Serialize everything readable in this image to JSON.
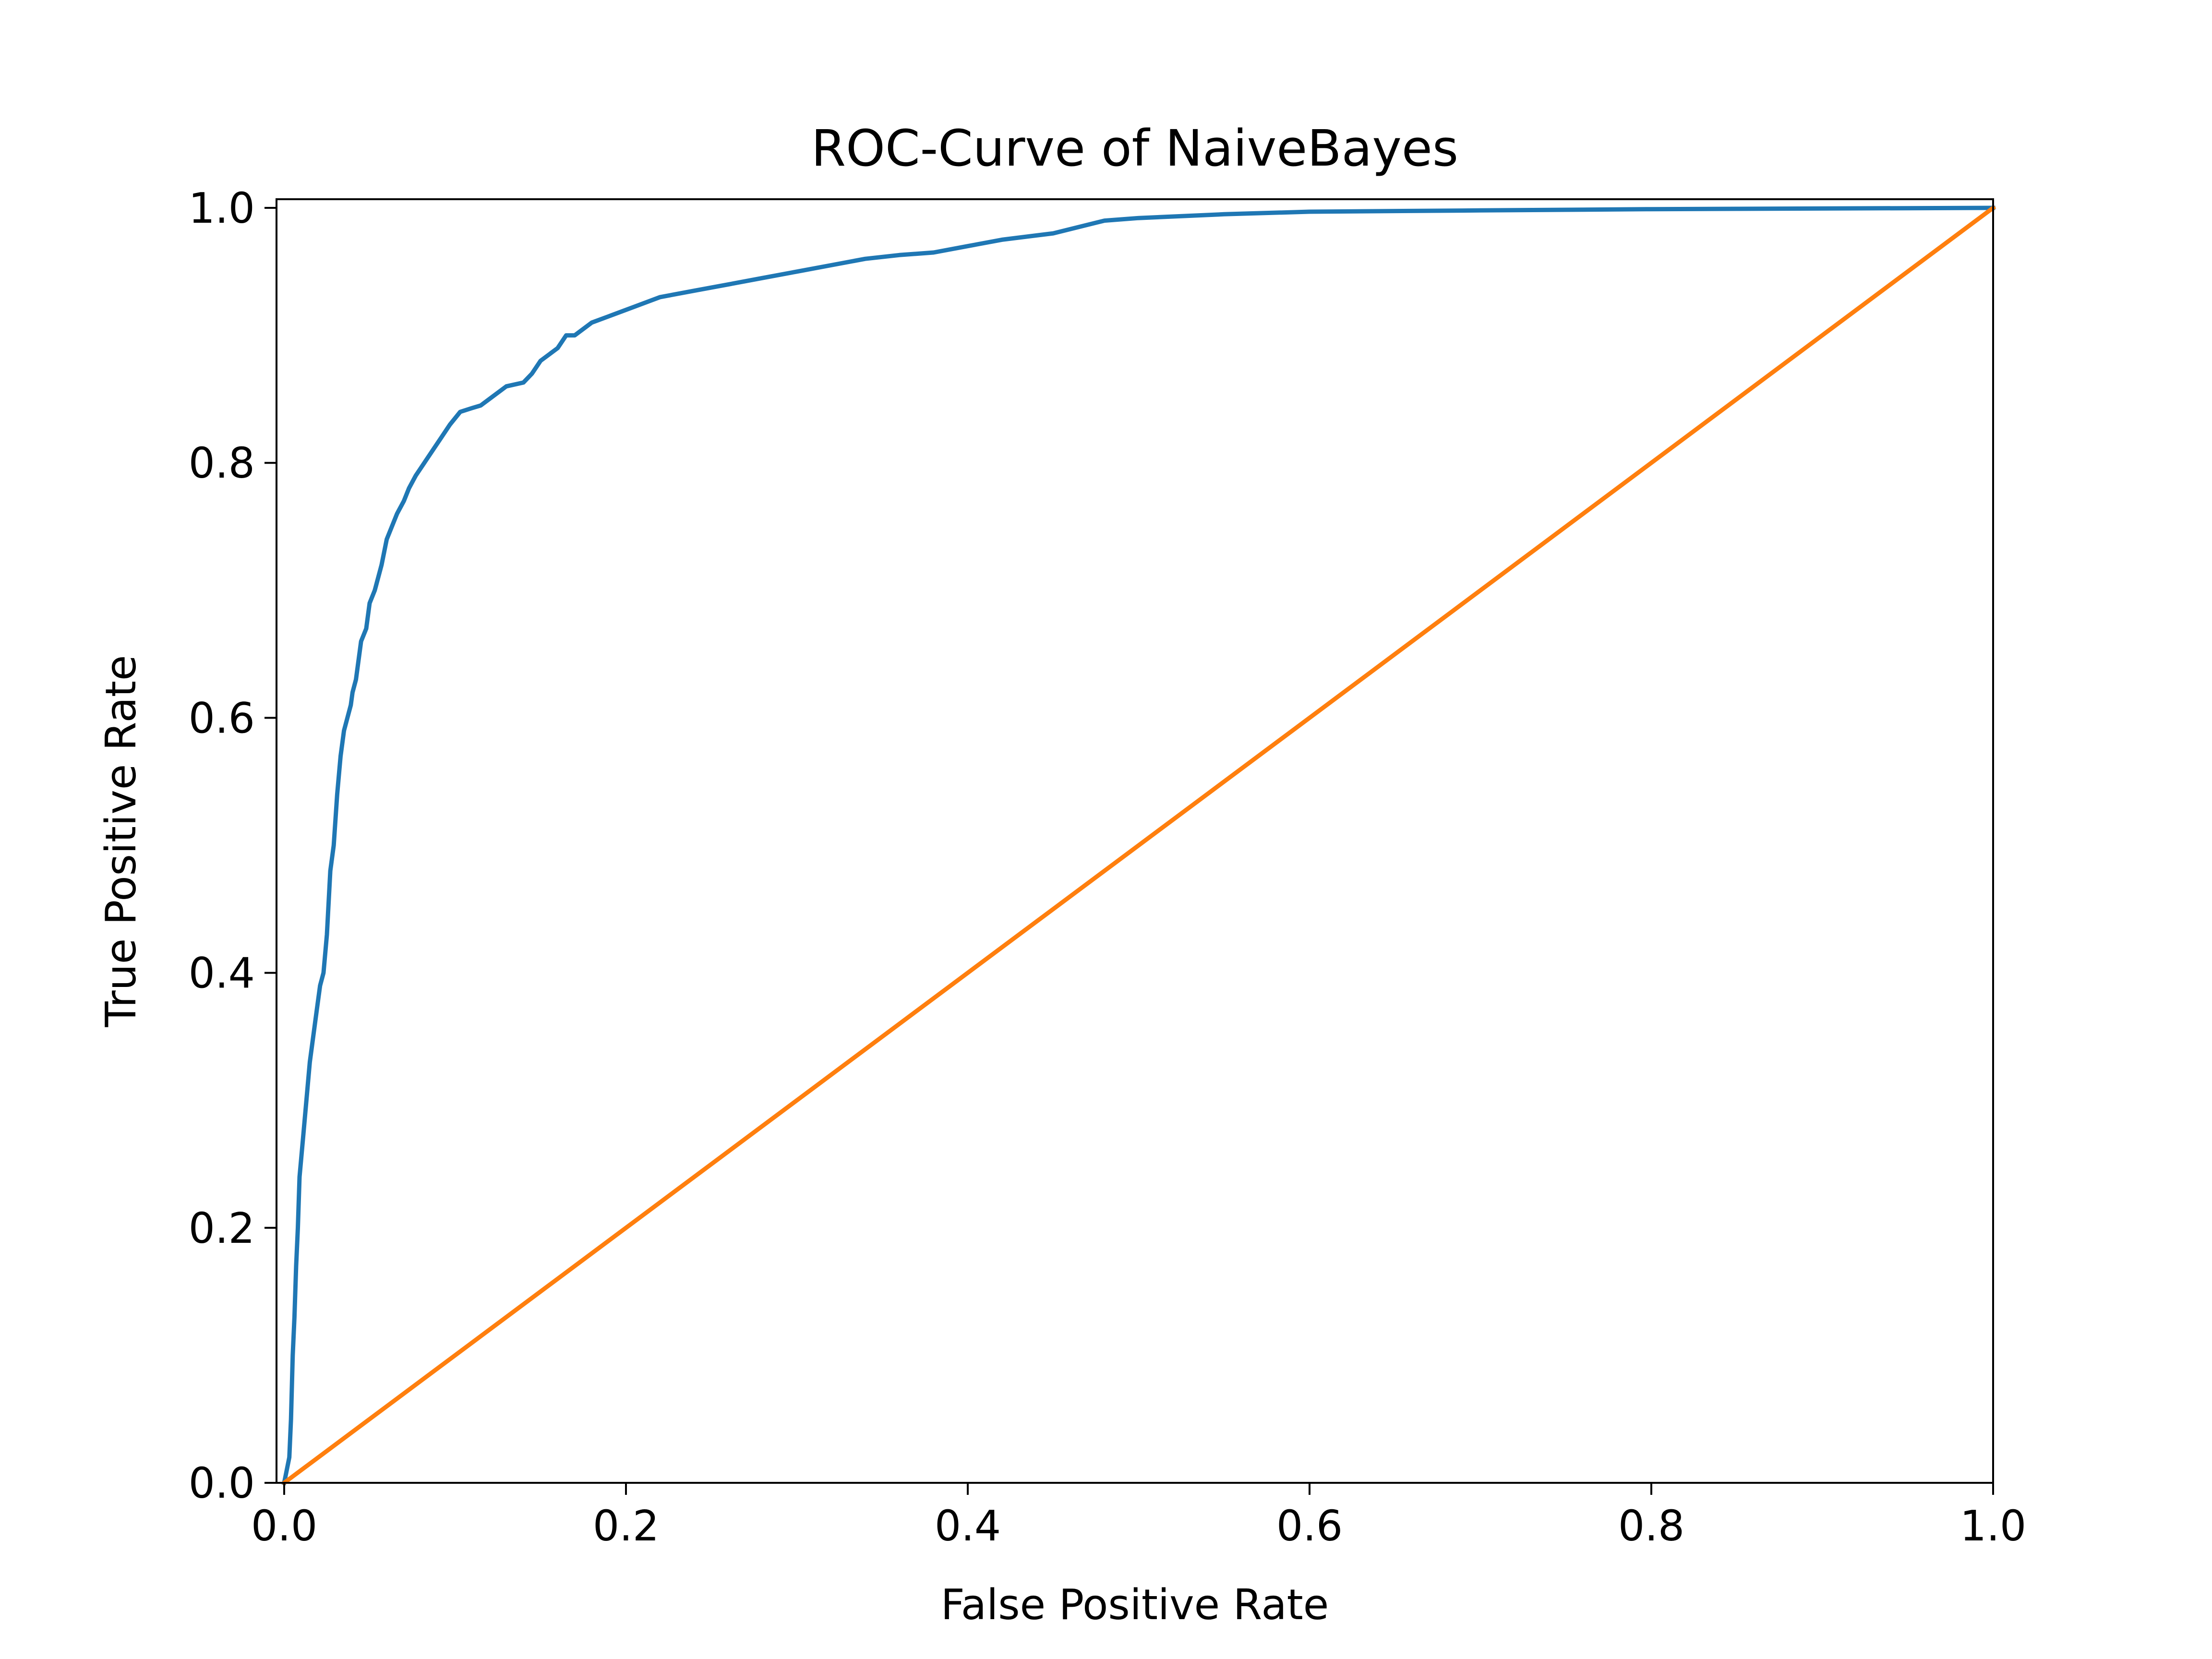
{
  "chart_data": {
    "type": "line",
    "title": "ROC-Curve of NaiveBayes",
    "xlabel": "False Positive Rate",
    "ylabel": "True Positive Rate",
    "xlim": [
      0.0,
      1.0
    ],
    "ylim": [
      0.0,
      1.0
    ],
    "x_ticks": [
      "0.0",
      "0.2",
      "0.4",
      "0.6",
      "0.8",
      "1.0"
    ],
    "y_ticks": [
      "0.0",
      "0.2",
      "0.4",
      "0.6",
      "0.8",
      "1.0"
    ],
    "grid": false,
    "legend": "none",
    "series": [
      {
        "color": "#1f77b4",
        "x": [
          0.0,
          0.003,
          0.004,
          0.005,
          0.006,
          0.007,
          0.008,
          0.009,
          0.011,
          0.013,
          0.015,
          0.017,
          0.019,
          0.021,
          0.023,
          0.025,
          0.027,
          0.029,
          0.031,
          0.033,
          0.035,
          0.037,
          0.039,
          0.04,
          0.042,
          0.045,
          0.048,
          0.05,
          0.053,
          0.057,
          0.06,
          0.063,
          0.066,
          0.07,
          0.073,
          0.077,
          0.082,
          0.087,
          0.092,
          0.097,
          0.103,
          0.11,
          0.115,
          0.12,
          0.13,
          0.14,
          0.145,
          0.15,
          0.16,
          0.165,
          0.17,
          0.18,
          0.19,
          0.2,
          0.22,
          0.24,
          0.26,
          0.28,
          0.3,
          0.32,
          0.34,
          0.36,
          0.38,
          0.4,
          0.42,
          0.45,
          0.48,
          0.5,
          0.55,
          0.6,
          0.7,
          0.8,
          1.0
        ],
        "y": [
          0.0,
          0.02,
          0.05,
          0.1,
          0.13,
          0.17,
          0.2,
          0.24,
          0.27,
          0.3,
          0.33,
          0.35,
          0.37,
          0.39,
          0.4,
          0.43,
          0.48,
          0.5,
          0.54,
          0.57,
          0.59,
          0.6,
          0.61,
          0.62,
          0.63,
          0.66,
          0.67,
          0.69,
          0.7,
          0.72,
          0.74,
          0.75,
          0.76,
          0.77,
          0.78,
          0.79,
          0.8,
          0.81,
          0.82,
          0.83,
          0.84,
          0.843,
          0.845,
          0.85,
          0.86,
          0.863,
          0.87,
          0.88,
          0.89,
          0.9,
          0.9,
          0.91,
          0.915,
          0.92,
          0.93,
          0.935,
          0.94,
          0.945,
          0.95,
          0.955,
          0.96,
          0.963,
          0.965,
          0.97,
          0.975,
          0.98,
          0.99,
          0.992,
          0.995,
          0.997,
          0.998,
          0.999,
          1.0
        ]
      },
      {
        "color": "#ff7f0e",
        "x": [
          0.0,
          1.0
        ],
        "y": [
          0.0,
          1.0
        ]
      }
    ]
  }
}
